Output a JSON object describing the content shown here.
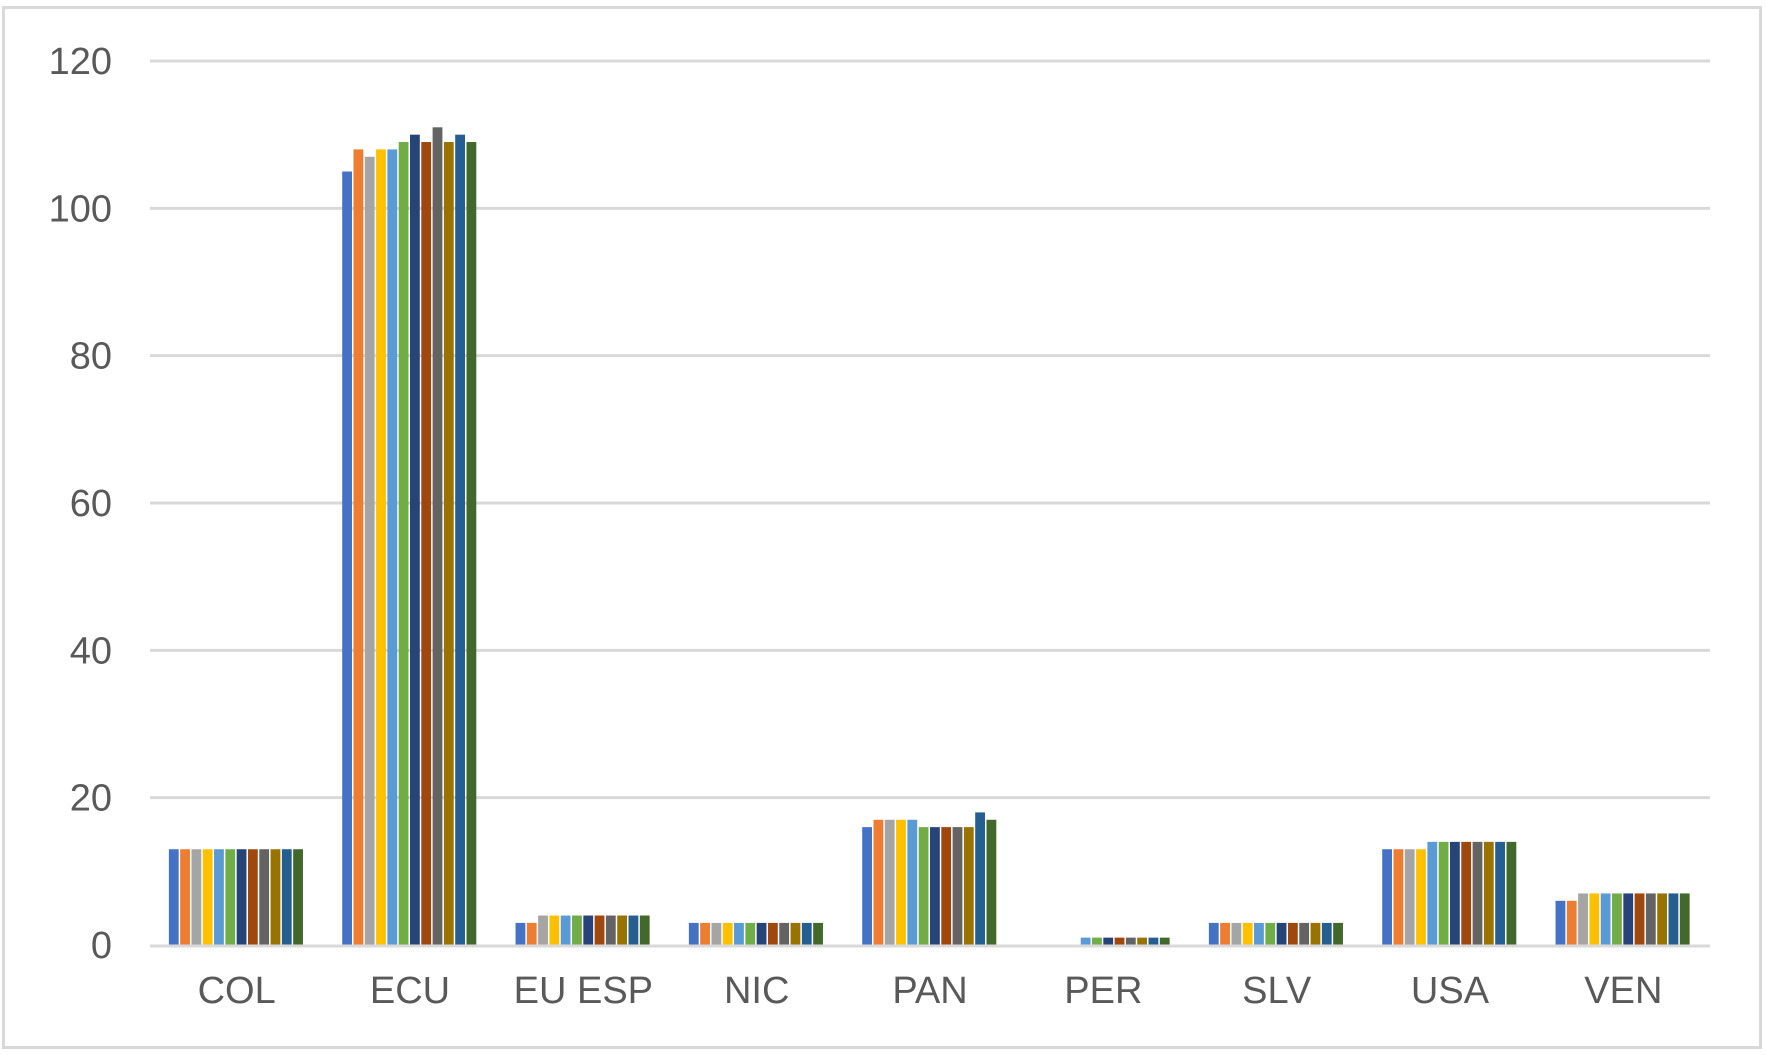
{
  "chart_data": {
    "type": "bar",
    "title": "",
    "xlabel": "",
    "ylabel": "",
    "ylim": [
      0,
      120
    ],
    "yticks": [
      0,
      20,
      40,
      60,
      80,
      100,
      120
    ],
    "ytick_labels": [
      "0",
      "20",
      "40",
      "60",
      "80",
      "100",
      "120"
    ],
    "grid": true,
    "legend": "none",
    "categories": [
      "COL",
      "ECU",
      "EU ESP",
      "NIC",
      "PAN",
      "PER",
      "SLV",
      "USA",
      "VEN"
    ],
    "series": [
      {
        "color": "#4472c4",
        "values": [
          13,
          105,
          3,
          3,
          16,
          0,
          3,
          13,
          6
        ]
      },
      {
        "color": "#ed7d31",
        "values": [
          13,
          108,
          3,
          3,
          17,
          0,
          3,
          13,
          6
        ]
      },
      {
        "color": "#a5a5a5",
        "values": [
          13,
          107,
          4,
          3,
          17,
          0,
          3,
          13,
          7
        ]
      },
      {
        "color": "#ffc000",
        "values": [
          13,
          108,
          4,
          3,
          17,
          0,
          3,
          13,
          7
        ]
      },
      {
        "color": "#5b9bd5",
        "values": [
          13,
          108,
          4,
          3,
          17,
          1,
          3,
          14,
          7
        ]
      },
      {
        "color": "#70ad47",
        "values": [
          13,
          109,
          4,
          3,
          16,
          1,
          3,
          14,
          7
        ]
      },
      {
        "color": "#264478",
        "values": [
          13,
          110,
          4,
          3,
          16,
          1,
          3,
          14,
          7
        ]
      },
      {
        "color": "#9e480e",
        "values": [
          13,
          109,
          4,
          3,
          16,
          1,
          3,
          14,
          7
        ]
      },
      {
        "color": "#636363",
        "values": [
          13,
          111,
          4,
          3,
          16,
          1,
          3,
          14,
          7
        ]
      },
      {
        "color": "#997300",
        "values": [
          13,
          109,
          4,
          3,
          16,
          1,
          3,
          14,
          7
        ]
      },
      {
        "color": "#255e91",
        "values": [
          13,
          110,
          4,
          3,
          18,
          1,
          3,
          14,
          7
        ]
      },
      {
        "color": "#43682b",
        "values": [
          13,
          109,
          4,
          3,
          17,
          1,
          3,
          14,
          7
        ]
      }
    ],
    "colors": {
      "grid": "#d9d9d9",
      "axis": "#d9d9d9",
      "tick_text": "#595959",
      "frame": "#d9d9d9"
    }
  }
}
